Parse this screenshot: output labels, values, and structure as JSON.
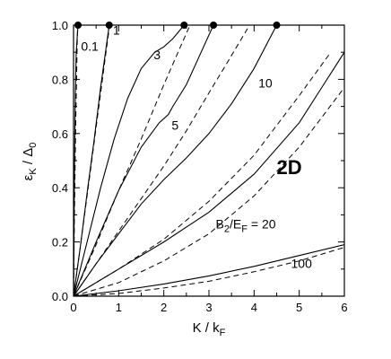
{
  "chart_data": {
    "type": "line",
    "panel_label": "2D",
    "xlabel": "K / k_F",
    "ylabel": "ε_K / Δ_0",
    "xlim": [
      0,
      6
    ],
    "ylim": [
      0,
      1.0
    ],
    "x_ticks": [
      "0",
      "1",
      "2",
      "3",
      "4",
      "5",
      "6"
    ],
    "y_ticks": [
      "0.0",
      "0.2",
      "0.4",
      "0.6",
      "0.8",
      "1.0"
    ],
    "legend_label": {
      "prefix": "B",
      "sub1": "2",
      "mid": "/E",
      "sub2": "F",
      "suffix": " = 20"
    },
    "series": [
      {
        "name": "0.1",
        "solid": [
          [
            0,
            0
          ],
          [
            0.01,
            0.2
          ],
          [
            0.02,
            0.45
          ],
          [
            0.04,
            0.75
          ],
          [
            0.06,
            0.9
          ],
          [
            0.1,
            1.0
          ]
        ],
        "dashed": [
          [
            0,
            0
          ],
          [
            0.02,
            0.3
          ],
          [
            0.05,
            0.65
          ],
          [
            0.09,
            1.0
          ]
        ]
      },
      {
        "name": "1",
        "solid": [
          [
            0,
            0
          ],
          [
            0.15,
            0.18
          ],
          [
            0.3,
            0.38
          ],
          [
            0.45,
            0.57
          ],
          [
            0.6,
            0.77
          ],
          [
            0.7,
            0.89
          ],
          [
            0.79,
            1.0
          ]
        ],
        "dashed": [
          [
            0,
            0
          ],
          [
            0.15,
            0.18
          ],
          [
            0.3,
            0.37
          ],
          [
            0.45,
            0.56
          ],
          [
            0.6,
            0.75
          ],
          [
            0.72,
            0.9
          ],
          [
            0.8,
            1.0
          ]
        ]
      },
      {
        "name": "3",
        "solid": [
          [
            0,
            0
          ],
          [
            0.3,
            0.2
          ],
          [
            0.6,
            0.4
          ],
          [
            0.9,
            0.58
          ],
          [
            1.2,
            0.73
          ],
          [
            1.5,
            0.84
          ],
          [
            1.8,
            0.9
          ],
          [
            2.0,
            0.92
          ],
          [
            2.2,
            0.95
          ],
          [
            2.4,
            0.99
          ],
          [
            2.45,
            1.0
          ]
        ],
        "dashed": [
          [
            0,
            0
          ],
          [
            0.5,
            0.19
          ],
          [
            1.0,
            0.39
          ],
          [
            1.5,
            0.58
          ],
          [
            2.0,
            0.78
          ],
          [
            2.5,
            0.97
          ],
          [
            2.58,
            1.0
          ]
        ]
      },
      {
        "name": "5",
        "solid": [
          [
            0,
            0
          ],
          [
            0.5,
            0.2
          ],
          [
            1.0,
            0.39
          ],
          [
            1.5,
            0.55
          ],
          [
            1.9,
            0.64
          ],
          [
            2.0,
            0.655
          ],
          [
            2.1,
            0.67
          ],
          [
            2.2,
            0.7
          ],
          [
            2.5,
            0.78
          ],
          [
            2.8,
            0.89
          ],
          [
            3.1,
            1.0
          ]
        ],
        "dashed": [
          [
            0,
            0
          ],
          [
            0.5,
            0.12
          ],
          [
            1.0,
            0.24
          ],
          [
            1.5,
            0.36
          ],
          [
            2.0,
            0.48
          ],
          [
            2.5,
            0.61
          ],
          [
            3.0,
            0.75
          ],
          [
            3.4,
            0.86
          ],
          [
            3.9,
            1.0
          ]
        ]
      },
      {
        "name": "10",
        "solid": [
          [
            0,
            0
          ],
          [
            0.5,
            0.12
          ],
          [
            1.0,
            0.23
          ],
          [
            1.5,
            0.34
          ],
          [
            2.0,
            0.43
          ],
          [
            2.5,
            0.51
          ],
          [
            3.0,
            0.6
          ],
          [
            3.5,
            0.71
          ],
          [
            4.0,
            0.84
          ],
          [
            4.5,
            1.0
          ]
        ],
        "dashed": [
          [
            0,
            0
          ],
          [
            1.0,
            0.1
          ],
          [
            2.0,
            0.21
          ],
          [
            3.0,
            0.35
          ],
          [
            4.0,
            0.52
          ],
          [
            5.0,
            0.74
          ],
          [
            5.7,
            0.9
          ]
        ]
      },
      {
        "name": "20",
        "solid": [
          [
            0,
            0
          ],
          [
            1.0,
            0.1
          ],
          [
            2.0,
            0.2
          ],
          [
            3.0,
            0.31
          ],
          [
            4.0,
            0.45
          ],
          [
            5.0,
            0.64
          ],
          [
            5.5,
            0.77
          ],
          [
            6.0,
            0.9
          ]
        ],
        "dashed": [
          [
            0,
            0
          ],
          [
            1.0,
            0.05
          ],
          [
            2.0,
            0.13
          ],
          [
            3.0,
            0.23
          ],
          [
            4.0,
            0.37
          ],
          [
            5.0,
            0.55
          ],
          [
            6.0,
            0.77
          ]
        ]
      },
      {
        "name": "100",
        "solid": [
          [
            0,
            0
          ],
          [
            1.0,
            0.02
          ],
          [
            2.0,
            0.045
          ],
          [
            3.0,
            0.075
          ],
          [
            4.0,
            0.11
          ],
          [
            5.0,
            0.15
          ],
          [
            6.0,
            0.19
          ]
        ],
        "dashed": [
          [
            0,
            0
          ],
          [
            1.0,
            0.01
          ],
          [
            2.0,
            0.03
          ],
          [
            3.0,
            0.055
          ],
          [
            4.0,
            0.09
          ],
          [
            5.0,
            0.13
          ],
          [
            6.0,
            0.18
          ]
        ]
      }
    ],
    "markers": [
      [
        0.1,
        1.0
      ],
      [
        0.79,
        1.0
      ],
      [
        2.45,
        1.0
      ],
      [
        3.1,
        1.0
      ],
      [
        4.5,
        1.0
      ]
    ],
    "curve_labels": [
      {
        "text": "0.1",
        "x": 0.36,
        "y": 0.905
      },
      {
        "text": "1",
        "x": 0.95,
        "y": 0.965
      },
      {
        "text": "3",
        "x": 1.85,
        "y": 0.875
      },
      {
        "text": "5",
        "x": 2.25,
        "y": 0.615
      },
      {
        "text": "10",
        "x": 4.25,
        "y": 0.77
      },
      {
        "text": "100",
        "x": 5.05,
        "y": 0.105
      }
    ],
    "legend_anchor": {
      "x": 3.15,
      "y": 0.25
    },
    "panel_anchor": {
      "x": 4.5,
      "y": 0.45
    }
  }
}
